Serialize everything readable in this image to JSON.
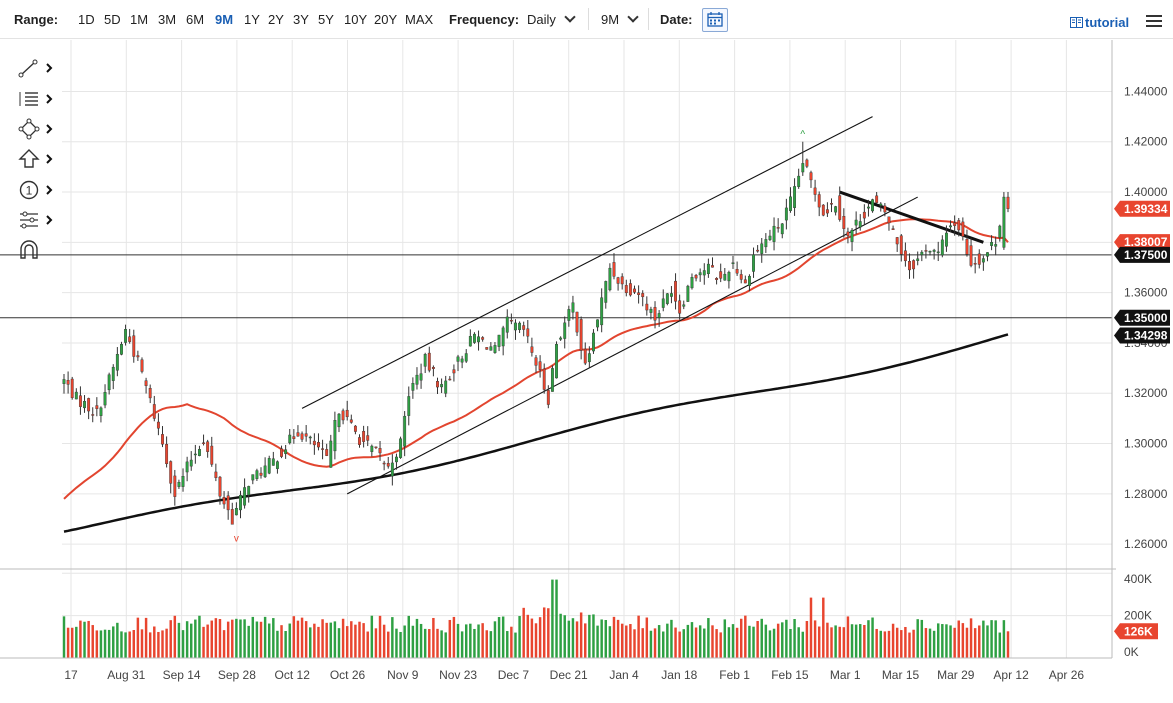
{
  "toolbar": {
    "range_label": "Range:",
    "ranges": [
      "1D",
      "5D",
      "1M",
      "3M",
      "6M",
      "9M",
      "1Y",
      "2Y",
      "3Y",
      "5Y",
      "10Y",
      "20Y",
      "MAX"
    ],
    "active_range": "9M",
    "frequency_label": "Frequency:",
    "frequency_value": "Daily",
    "period_value": "9M",
    "date_label": "Date:",
    "tutorial_label": "tutorial",
    "calendar_icon": "calendar-icon",
    "menu_icon": "hamburger-menu-icon"
  },
  "drawing_tools": [
    {
      "name": "trend-line-icon"
    },
    {
      "name": "fibonacci-icon"
    },
    {
      "name": "shapes-icon"
    },
    {
      "name": "arrow-up-icon"
    },
    {
      "name": "counter-icon",
      "glyph": "1"
    },
    {
      "name": "measure-icon"
    },
    {
      "name": "magnet-icon"
    }
  ],
  "colors": {
    "up": "#2ea043",
    "down": "#e8452f",
    "ma_short": "#e2452f",
    "ma_long": "#111111",
    "grid": "#e6e6e6"
  },
  "chart_data": {
    "type": "candlestick",
    "x_tick_labels": [
      "17",
      "Aug 31",
      "Sep 14",
      "Sep 28",
      "Oct 12",
      "Oct 26",
      "Nov 9",
      "Nov 23",
      "Dec 7",
      "Dec 21",
      "Jan 4",
      "Jan 18",
      "Feb 1",
      "Feb 15",
      "Mar 1",
      "Mar 15",
      "Mar 29",
      "Apr 12",
      "Apr 26"
    ],
    "y_tick_labels": [
      "1.44000",
      "1.42000",
      "1.40000",
      "1.38000",
      "1.36000",
      "1.34000",
      "1.32000",
      "1.30000",
      "1.28000",
      "1.26000"
    ],
    "ylim": [
      1.2525,
      1.4525
    ],
    "price_tags": [
      {
        "label": "1.39334",
        "value": 1.39334,
        "style": "down"
      },
      {
        "label": "1.38007",
        "value": 1.38007,
        "style": "down"
      },
      {
        "label": "1.37500",
        "value": 1.375,
        "style": "line"
      },
      {
        "label": "1.35000",
        "value": 1.35,
        "style": "line"
      },
      {
        "label": "1.34298",
        "value": 1.34298,
        "style": "line"
      }
    ],
    "horizontal_lines": [
      1.375,
      1.35
    ],
    "volume_tick_labels": [
      "400K",
      "200K",
      "0K"
    ],
    "volume_last_label": "126K",
    "volume_last_value": 126,
    "volume_ylim_k": [
      0,
      420
    ],
    "waypoints": [
      [
        0,
        1.325
      ],
      [
        3,
        1.318
      ],
      [
        8,
        1.312
      ],
      [
        12,
        1.33
      ],
      [
        15,
        1.345
      ],
      [
        19,
        1.328
      ],
      [
        24,
        1.3
      ],
      [
        27,
        1.28
      ],
      [
        31,
        1.294
      ],
      [
        34,
        1.302
      ],
      [
        38,
        1.28
      ],
      [
        41,
        1.27
      ],
      [
        45,
        1.285
      ],
      [
        51,
        1.293
      ],
      [
        57,
        1.305
      ],
      [
        62,
        1.298
      ],
      [
        64,
        1.293
      ],
      [
        67,
        1.314
      ],
      [
        72,
        1.302
      ],
      [
        77,
        1.295
      ],
      [
        79,
        1.29
      ],
      [
        82,
        1.3
      ],
      [
        84,
        1.32
      ],
      [
        88,
        1.333
      ],
      [
        92,
        1.322
      ],
      [
        95,
        1.33
      ],
      [
        100,
        1.343
      ],
      [
        105,
        1.337
      ],
      [
        108,
        1.348
      ],
      [
        112,
        1.345
      ],
      [
        115,
        1.332
      ],
      [
        118,
        1.318
      ],
      [
        120,
        1.34
      ],
      [
        124,
        1.355
      ],
      [
        127,
        1.33
      ],
      [
        130,
        1.35
      ],
      [
        133,
        1.37
      ],
      [
        136,
        1.363
      ],
      [
        140,
        1.36
      ],
      [
        144,
        1.35
      ],
      [
        148,
        1.362
      ],
      [
        150,
        1.353
      ],
      [
        153,
        1.367
      ],
      [
        157,
        1.37
      ],
      [
        160,
        1.365
      ],
      [
        163,
        1.372
      ],
      [
        166,
        1.363
      ],
      [
        168,
        1.375
      ],
      [
        172,
        1.383
      ],
      [
        175,
        1.388
      ],
      [
        178,
        1.4
      ],
      [
        180,
        1.412
      ],
      [
        181,
        1.408
      ],
      [
        183,
        1.4
      ],
      [
        185,
        1.392
      ],
      [
        188,
        1.396
      ],
      [
        191,
        1.382
      ],
      [
        194,
        1.39
      ],
      [
        197,
        1.396
      ],
      [
        200,
        1.392
      ],
      [
        203,
        1.38
      ],
      [
        206,
        1.37
      ],
      [
        208,
        1.373
      ],
      [
        210,
        1.378
      ],
      [
        213,
        1.375
      ],
      [
        216,
        1.388
      ],
      [
        218,
        1.386
      ],
      [
        221,
        1.372
      ],
      [
        224,
        1.374
      ],
      [
        227,
        1.381
      ],
      [
        229,
        1.396
      ],
      [
        230,
        1.394
      ]
    ],
    "price_range_approx": {
      "low": 1.268,
      "high": 1.42
    },
    "series": [
      {
        "name": "",
        "type": "moving-average-short",
        "start": 1.278,
        "end": 1.38007
      },
      {
        "name": "",
        "type": "moving-average-long",
        "start": 1.265,
        "end": 1.34298
      }
    ],
    "trendlines": [
      {
        "from": [
          58,
          1.314
        ],
        "to": [
          197,
          1.43
        ]
      },
      {
        "from": [
          69,
          1.28
        ],
        "to": [
          208,
          1.398
        ]
      },
      {
        "from": [
          189,
          1.4
        ],
        "to": [
          224,
          1.38
        ]
      }
    ],
    "annotations": [
      {
        "text": "^",
        "at": [
          180,
          1.42
        ]
      },
      {
        "text": "v",
        "at": [
          42,
          1.265
        ]
      }
    ],
    "legend": "none",
    "grid": true
  }
}
